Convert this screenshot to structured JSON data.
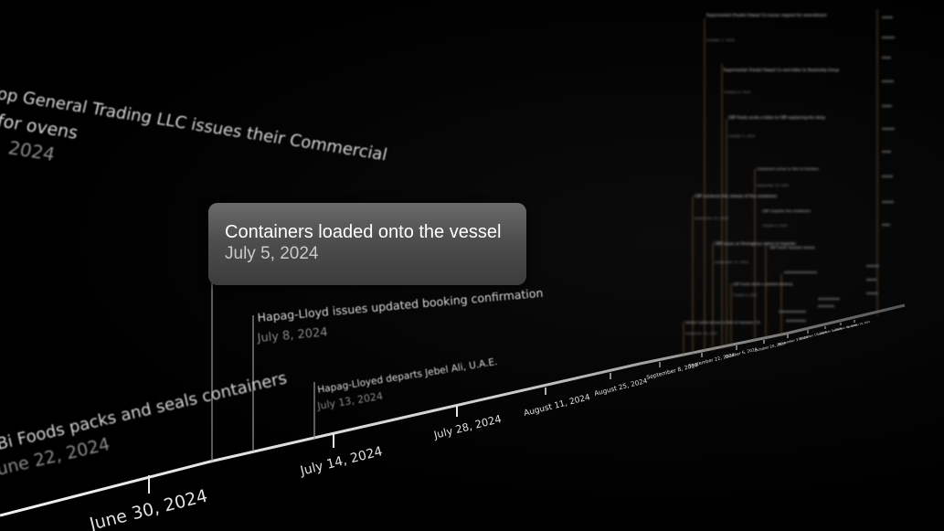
{
  "timeline": {
    "axis_ticks": [
      "June 30, 2024",
      "July 14, 2024",
      "July 28, 2024",
      "August 11, 2024",
      "August 25, 2024",
      "September 8, 2024",
      "September 22, 2024",
      "October 6, 2024",
      "October 20, 2024",
      "November 3, 2024",
      "November 17, 2024",
      "December 1, 2024",
      "December 15, 2024",
      "December 29, 2024"
    ],
    "events": [
      {
        "title": "op General Trading LLC issues their Commercial",
        "title2": "for ovens",
        "date": "2024"
      },
      {
        "title": "Bi Foods packs and seals containers",
        "date": "une 22, 2024"
      },
      {
        "title": "Hapag-Lloyd issues updated booking confirmation",
        "date": "July 8, 2024"
      },
      {
        "title": "Hapag-Lloyed departs Jebel Ali, U.A.E.",
        "date": "July 13, 2024"
      }
    ],
    "far_events": [
      {
        "title": "Containers arrive in Port of Houston",
        "date": "September 15, 2024"
      },
      {
        "title": "Supermarket (Foods) Hawaii Co issues request for amendment",
        "date": "October 2, 2024"
      },
      {
        "title": "CBP Foods sends a letter to CBP explaining the delay",
        "date": "October 5, 2024"
      },
      {
        "title": "Supermarket (Foods) Hawaii Co sent letter to Steamship Group",
        "date": "October 8, 2024"
      },
      {
        "title": "CBP conducts the release of the containers",
        "date": "September 25, 2024"
      },
      {
        "title": "CBP issues an Emergency notice to importer",
        "date": "September 27, 2024"
      },
      {
        "title": "CBP inspects the containers",
        "date": "October 3, 2024"
      },
      {
        "title": "Vessel Castle arrives in Port of Houston, TX",
        "date": "September 18, 2024"
      },
      {
        "title": "CBP Foods sends a updated booking",
        "date": "October 6, 2024"
      },
      {
        "title": "CBP Foods requests release",
        "date": "October 14, 2024"
      }
    ]
  },
  "tooltip": {
    "title": "Containers loaded onto the vessel",
    "date": "July 5, 2024"
  }
}
